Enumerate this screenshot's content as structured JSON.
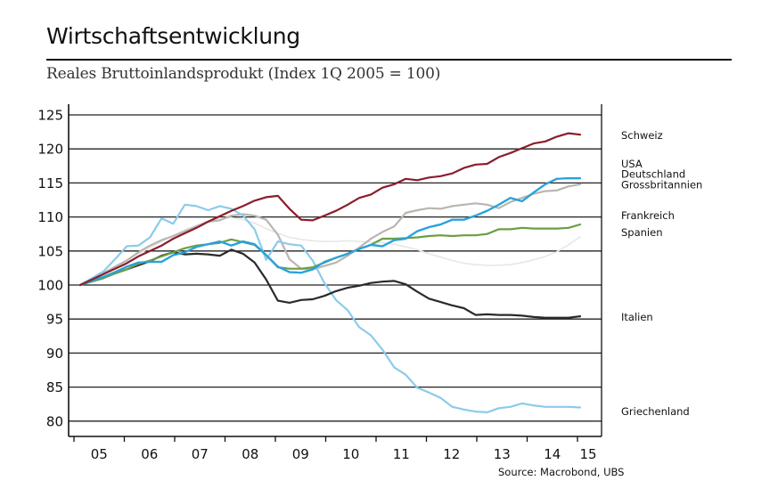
{
  "header": {
    "title": "Wirtschaftsentwicklung",
    "subtitle": "Reales Bruttoinlandsprodukt (Index 1Q 2005 = 100)"
  },
  "source": "Source: Macrobond, UBS",
  "chart_data": {
    "type": "line",
    "title": "Wirtschaftsentwicklung",
    "subtitle": "Reales Bruttoinlandsprodukt (Index 1Q 2005 = 100)",
    "xlabel": "",
    "ylabel": "",
    "x_frequency": "quarterly",
    "x_start": "2005Q1",
    "x_tick_labels": [
      "05",
      "06",
      "07",
      "08",
      "09",
      "10",
      "11",
      "12",
      "13",
      "14",
      "15"
    ],
    "y_ticks": [
      80,
      85,
      90,
      95,
      100,
      105,
      110,
      115,
      120,
      125
    ],
    "ylim": [
      79,
      126
    ],
    "grid": "horizontal",
    "legend_placement": "right",
    "series": [
      {
        "name": "Schweiz",
        "color": "#8b1e2b",
        "values": [
          100,
          100.8,
          101.6,
          102.4,
          103.2,
          104.2,
          105.0,
          105.8,
          106.8,
          107.6,
          108.4,
          109.3,
          110.1,
          110.9,
          111.6,
          112.4,
          112.9,
          113.1,
          111.2,
          109.6,
          109.5,
          110.2,
          110.9,
          111.8,
          112.8,
          113.3,
          114.3,
          114.8,
          115.6,
          115.4,
          115.8,
          116.0,
          116.4,
          117.2,
          117.7,
          117.8,
          118.8,
          119.4,
          120.1,
          120.8,
          121.1,
          121.8,
          122.3,
          122.1
        ]
      },
      {
        "name": "USA",
        "color": "#29a3dc",
        "values": [
          100,
          100.6,
          101.2,
          101.9,
          102.7,
          103.3,
          103.4,
          103.4,
          104.4,
          104.8,
          105.6,
          106.0,
          106.4,
          105.8,
          106.4,
          106.0,
          104.4,
          102.7,
          101.9,
          101.8,
          102.3,
          103.4,
          104.0,
          104.6,
          105.3,
          105.9,
          105.7,
          106.6,
          106.8,
          107.9,
          108.5,
          108.9,
          109.6,
          109.6,
          110.2,
          110.9,
          111.8,
          112.8,
          112.3,
          113.6,
          114.8,
          115.6,
          115.7,
          115.7
        ]
      },
      {
        "name": "Deutschland",
        "color": "#29a3dc",
        "values": [
          100,
          100.6,
          101.2,
          101.9,
          102.7,
          103.3,
          103.4,
          103.4,
          104.4,
          104.8,
          105.6,
          106.0,
          106.4,
          105.8,
          106.4,
          106.0,
          104.4,
          102.7,
          101.9,
          101.8,
          102.3,
          103.4,
          104.0,
          104.6,
          105.3,
          105.9,
          105.7,
          106.6,
          106.8,
          107.9,
          108.5,
          108.9,
          109.6,
          109.6,
          110.2,
          110.9,
          111.8,
          112.8,
          112.3,
          113.6,
          114.8,
          115.6,
          115.7,
          115.7
        ]
      },
      {
        "name": "Grossbritannien",
        "color": "#b9b6b0",
        "values": [
          100,
          100.9,
          101.7,
          102.7,
          103.6,
          104.8,
          105.8,
          106.6,
          107.2,
          107.9,
          108.6,
          109.3,
          109.5,
          110.2,
          110.4,
          110.2,
          109.6,
          107.4,
          103.8,
          102.4,
          102.3,
          102.8,
          103.3,
          104.3,
          105.5,
          106.8,
          107.8,
          108.6,
          110.6,
          111.0,
          111.3,
          111.2,
          111.6,
          111.8,
          112.0,
          111.8,
          111.3,
          112.2,
          112.8,
          113.4,
          113.8,
          113.9,
          114.5,
          114.8
        ]
      },
      {
        "name": "Frankreich",
        "color": "#6a9e45",
        "values": [
          100,
          100.5,
          101.0,
          101.7,
          102.3,
          103.1,
          103.6,
          104.2,
          104.8,
          105.4,
          105.8,
          106.0,
          106.2,
          106.7,
          106.3,
          105.9,
          104.4,
          102.6,
          102.4,
          102.4,
          102.6,
          103.3,
          104.0,
          104.6,
          105.3,
          105.9,
          106.8,
          106.8,
          106.9,
          107.0,
          107.2,
          107.3,
          107.2,
          107.3,
          107.3,
          107.5,
          108.2,
          108.2,
          108.4,
          108.3,
          108.3,
          108.3,
          108.4,
          108.9
        ]
      },
      {
        "name": "Spanien",
        "color": "#e6e8e6",
        "values": [
          100,
          100.9,
          101.8,
          102.7,
          103.6,
          104.6,
          105.5,
          106.4,
          107.3,
          108.1,
          108.8,
          109.4,
          109.8,
          109.9,
          109.6,
          109.1,
          108.3,
          107.6,
          107.0,
          106.7,
          106.5,
          106.4,
          106.4,
          106.5,
          106.4,
          106.3,
          106.2,
          106.0,
          105.6,
          105.2,
          104.6,
          104.1,
          103.6,
          103.2,
          103.0,
          102.9,
          102.9,
          103.0,
          103.3,
          103.7,
          104.2,
          104.9,
          105.9,
          107.1
        ]
      },
      {
        "name": "Italien",
        "color": "#2a2a2a",
        "values": [
          100,
          100.6,
          101.1,
          101.7,
          102.3,
          102.9,
          103.5,
          104.3,
          104.8,
          104.5,
          104.6,
          104.5,
          104.3,
          105.2,
          104.6,
          103.3,
          100.8,
          97.7,
          97.4,
          97.8,
          97.9,
          98.4,
          99.1,
          99.6,
          99.9,
          100.3,
          100.5,
          100.6,
          100.1,
          99.0,
          98.0,
          97.5,
          97.0,
          96.6,
          95.6,
          95.7,
          95.6,
          95.6,
          95.5,
          95.3,
          95.2,
          95.2,
          95.2,
          95.4
        ]
      },
      {
        "name": "Griechenland",
        "color": "#8ccbea",
        "values": [
          100,
          101.0,
          102.0,
          103.8,
          105.7,
          105.8,
          107.0,
          109.8,
          109.0,
          111.8,
          111.6,
          111.0,
          111.6,
          111.2,
          110.2,
          108.2,
          103.7,
          106.4,
          106.0,
          105.8,
          103.6,
          100.3,
          97.8,
          96.3,
          93.8,
          92.6,
          90.5,
          87.9,
          86.8,
          84.9,
          84.2,
          83.4,
          82.1,
          81.7,
          81.4,
          81.3,
          81.9,
          82.1,
          82.6,
          82.3,
          82.1,
          82.1,
          82.1,
          82.0
        ]
      }
    ],
    "legend": [
      {
        "label": "Schweiz",
        "value_anchor": 122
      },
      {
        "label": "USA",
        "value_anchor": 117.8
      },
      {
        "label": "Deutschland",
        "value_anchor": 116.3
      },
      {
        "label": "Grossbritannien",
        "value_anchor": 114.7
      },
      {
        "label": "Frankreich",
        "value_anchor": 110.2
      },
      {
        "label": "Spanien",
        "value_anchor": 107.7
      },
      {
        "label": "Italien",
        "value_anchor": 95.3
      },
      {
        "label": "Griechenland",
        "value_anchor": 81.4
      }
    ]
  }
}
